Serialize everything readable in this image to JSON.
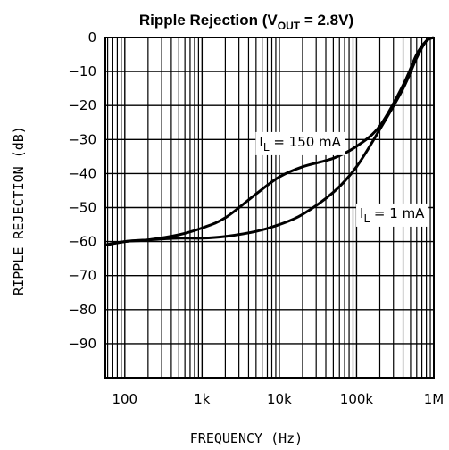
{
  "chart_data": {
    "type": "line",
    "title": {
      "prefix": "Ripple Rejection (V",
      "subscript": "OUT",
      "suffix": " = 2.8V)"
    },
    "xlabel": "FREQUENCY (Hz)",
    "ylabel": "RIPPLE REJECTION (dB)",
    "x_scale": "log",
    "xlim": [
      56,
      1000000
    ],
    "ylim": [
      -100,
      0
    ],
    "grid": true,
    "x_ticks": [
      {
        "value": 100,
        "label": "100"
      },
      {
        "value": 1000,
        "label": "1k"
      },
      {
        "value": 10000,
        "label": "10k"
      },
      {
        "value": 100000,
        "label": "100k"
      },
      {
        "value": 1000000,
        "label": "1M"
      }
    ],
    "y_ticks": [
      {
        "value": 0,
        "label": "0"
      },
      {
        "value": -10,
        "label": "-10"
      },
      {
        "value": -20,
        "label": "-20"
      },
      {
        "value": -30,
        "label": "-30"
      },
      {
        "value": -40,
        "label": "-40"
      },
      {
        "value": -50,
        "label": "-50"
      },
      {
        "value": -60,
        "label": "-60"
      },
      {
        "value": -70,
        "label": "-70"
      },
      {
        "value": -80,
        "label": "-80"
      },
      {
        "value": -90,
        "label": "-90"
      }
    ],
    "series": [
      {
        "name": "IL = 150 mA",
        "label_main": "I",
        "label_sub": "L",
        "label_rest": " =  150 mA",
        "label_at": {
          "x": 5500,
          "y": -32
        },
        "color": "#000000",
        "x": [
          56,
          100,
          200,
          500,
          1000,
          2000,
          5000,
          10000,
          20000,
          50000,
          100000,
          200000,
          400000,
          600000,
          800000,
          1000000
        ],
        "y": [
          -61,
          -60,
          -59.5,
          -58,
          -56,
          -53,
          -46,
          -41,
          -38,
          -35.5,
          -32,
          -26,
          -14,
          -5,
          -1,
          0
        ]
      },
      {
        "name": "IL = 1 mA",
        "label_main": "I",
        "label_sub": "L",
        "label_rest": "  =  1 mA",
        "label_at": {
          "x": 110000,
          "y": -53
        },
        "color": "#000000",
        "x": [
          56,
          100,
          200,
          500,
          1000,
          2000,
          5000,
          10000,
          20000,
          50000,
          100000,
          200000,
          400000,
          600000,
          800000,
          1000000
        ],
        "y": [
          -61,
          -60,
          -59.5,
          -59,
          -59,
          -58.5,
          -57,
          -55,
          -52,
          -45.5,
          -38,
          -27,
          -15,
          -6,
          -1,
          0
        ]
      }
    ]
  }
}
